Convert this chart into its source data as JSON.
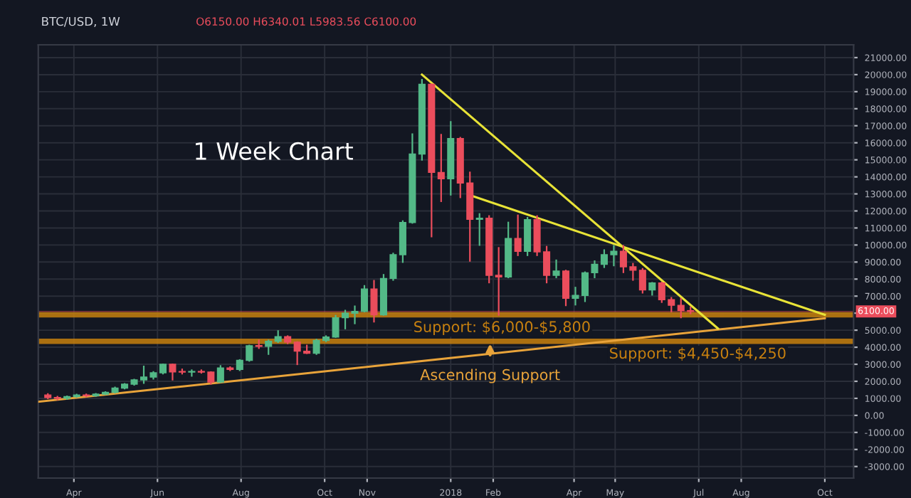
{
  "chart_data": {
    "type": "candlestick",
    "title": "BTC/USD, 1W",
    "annotations": [
      "O6150.00 H6340.01 L5983.56 C6100.00",
      "1 Week Chart",
      "Ascending Support"
    ],
    "x": [
      "2017-03-13",
      "2017-03-20",
      "2017-03-27",
      "2017-04-03",
      "2017-04-10",
      "2017-04-17",
      "2017-04-24",
      "2017-05-01",
      "2017-05-08",
      "2017-05-15",
      "2017-05-22",
      "2017-05-29",
      "2017-06-05",
      "2017-06-12",
      "2017-06-19",
      "2017-06-26",
      "2017-07-03",
      "2017-07-10",
      "2017-07-17",
      "2017-07-24",
      "2017-07-31",
      "2017-08-07",
      "2017-08-14",
      "2017-08-21",
      "2017-08-28",
      "2017-09-04",
      "2017-09-11",
      "2017-09-18",
      "2017-09-25",
      "2017-10-02",
      "2017-10-09",
      "2017-10-16",
      "2017-10-23",
      "2017-10-30",
      "2017-11-06",
      "2017-11-13",
      "2017-11-20",
      "2017-11-27",
      "2017-12-04",
      "2017-12-11",
      "2017-12-18",
      "2017-12-25",
      "2018-01-01",
      "2018-01-08",
      "2018-01-15",
      "2018-01-22",
      "2018-01-29",
      "2018-02-05",
      "2018-02-12",
      "2018-02-19",
      "2018-02-26",
      "2018-03-05",
      "2018-03-12",
      "2018-03-19",
      "2018-03-26",
      "2018-04-02",
      "2018-04-09",
      "2018-04-16",
      "2018-04-23",
      "2018-04-30",
      "2018-05-07",
      "2018-05-14",
      "2018-05-21",
      "2018-05-28",
      "2018-06-04",
      "2018-06-11",
      "2018-06-18",
      "2018-06-25"
    ],
    "ohlc": [
      [
        1200,
        1250,
        1000,
        1050
      ],
      [
        1050,
        1100,
        930,
        1000
      ],
      [
        1000,
        1120,
        960,
        1100
      ],
      [
        1100,
        1220,
        1080,
        1200
      ],
      [
        1200,
        1230,
        1120,
        1150
      ],
      [
        1150,
        1260,
        1140,
        1250
      ],
      [
        1250,
        1370,
        1240,
        1350
      ],
      [
        1350,
        1640,
        1340,
        1600
      ],
      [
        1600,
        1850,
        1580,
        1830
      ],
      [
        1830,
        2100,
        1800,
        2080
      ],
      [
        2080,
        2870,
        1900,
        2250
      ],
      [
        2250,
        2550,
        2150,
        2500
      ],
      [
        2500,
        3000,
        2450,
        3000
      ],
      [
        3000,
        3000,
        2100,
        2550
      ],
      [
        2580,
        2700,
        2450,
        2540
      ],
      [
        2540,
        2650,
        2320,
        2580
      ],
      [
        2580,
        2650,
        2500,
        2540
      ],
      [
        2540,
        2540,
        1850,
        1960
      ],
      [
        1960,
        2900,
        1950,
        2780
      ],
      [
        2780,
        2830,
        2650,
        2700
      ],
      [
        2700,
        3250,
        2650,
        3230
      ],
      [
        3230,
        4100,
        3200,
        4090
      ],
      [
        4100,
        4400,
        3950,
        4050
      ],
      [
        4050,
        4400,
        3600,
        4350
      ],
      [
        4350,
        4950,
        4300,
        4620
      ],
      [
        4620,
        4650,
        4230,
        4300
      ],
      [
        4300,
        4300,
        3000,
        3770
      ],
      [
        3770,
        4100,
        3650,
        3650
      ],
      [
        3650,
        4450,
        3600,
        4400
      ],
      [
        4400,
        4650,
        4350,
        4600
      ],
      [
        4600,
        5850,
        4600,
        5730
      ],
      [
        5730,
        6150,
        5100,
        6000
      ],
      [
        6000,
        6400,
        5400,
        6100
      ],
      [
        6100,
        7600,
        6100,
        7420
      ],
      [
        7420,
        7900,
        5500,
        5900
      ],
      [
        5900,
        8250,
        5900,
        8040
      ],
      [
        8040,
        9500,
        7950,
        9430
      ],
      [
        9430,
        11400,
        9000,
        11320
      ],
      [
        11320,
        16500,
        11300,
        15340
      ],
      [
        15340,
        19700,
        15000,
        19440
      ],
      [
        19440,
        19440,
        10500,
        14260
      ],
      [
        14260,
        16470,
        12570,
        13890
      ],
      [
        13890,
        17230,
        12950,
        16250
      ],
      [
        16250,
        16300,
        12800,
        13640
      ],
      [
        13640,
        14260,
        9070,
        11510
      ],
      [
        11510,
        11820,
        10000,
        11570
      ],
      [
        11570,
        11700,
        7800,
        8220
      ],
      [
        8220,
        9830,
        5900,
        8120
      ],
      [
        8120,
        11320,
        8100,
        10380
      ],
      [
        10380,
        11740,
        9400,
        9630
      ],
      [
        9630,
        11600,
        9400,
        11490
      ],
      [
        11490,
        11700,
        9400,
        9600
      ],
      [
        9600,
        9900,
        7800,
        8220
      ],
      [
        8220,
        9100,
        8100,
        8470
      ],
      [
        8470,
        8500,
        6460,
        6870
      ],
      [
        6870,
        7500,
        6500,
        7040
      ],
      [
        7040,
        8400,
        6700,
        8370
      ],
      [
        8370,
        9050,
        8100,
        8870
      ],
      [
        8870,
        9700,
        8700,
        9430
      ],
      [
        9430,
        9950,
        8800,
        9630
      ],
      [
        9630,
        9950,
        8400,
        8720
      ],
      [
        8720,
        8900,
        7950,
        8520
      ],
      [
        8520,
        8600,
        7200,
        7360
      ],
      [
        7360,
        7780,
        7080,
        7770
      ],
      [
        7770,
        7800,
        6650,
        6790
      ],
      [
        6790,
        6900,
        6100,
        6460
      ],
      [
        6460,
        6850,
        5750,
        6150
      ],
      [
        6150,
        6340.01,
        5983.56,
        6100
      ]
    ],
    "colors": [
      "#eb4d5c",
      "#eb4d5c",
      "#53b987",
      "#53b987",
      "#eb4d5c",
      "#53b987",
      "#53b987",
      "#53b987",
      "#53b987",
      "#53b987",
      "#53b987",
      "#53b987",
      "#53b987",
      "#eb4d5c",
      "#eb4d5c",
      "#53b987",
      "#eb4d5c",
      "#eb4d5c",
      "#53b987",
      "#eb4d5c",
      "#53b987",
      "#53b987",
      "#eb4d5c",
      "#53b987",
      "#53b987",
      "#eb4d5c",
      "#eb4d5c",
      "#eb4d5c",
      "#53b987",
      "#53b987",
      "#53b987",
      "#53b987",
      "#53b987",
      "#53b987",
      "#eb4d5c",
      "#53b987",
      "#53b987",
      "#53b987",
      "#53b987",
      "#53b987",
      "#eb4d5c",
      "#eb4d5c",
      "#53b987",
      "#eb4d5c",
      "#eb4d5c",
      "#53b987",
      "#eb4d5c",
      "#eb4d5c",
      "#53b987",
      "#eb4d5c",
      "#53b987",
      "#eb4d5c",
      "#eb4d5c",
      "#53b987",
      "#eb4d5c",
      "#53b987",
      "#53b987",
      "#53b987",
      "#53b987",
      "#53b987",
      "#eb4d5c",
      "#eb4d5c",
      "#eb4d5c",
      "#53b987",
      "#eb4d5c",
      "#eb4d5c",
      "#eb4d5c",
      "#eb4d5c"
    ],
    "series": [
      {
        "type": "line",
        "color": "#e8a33a",
        "x": [
          "2017-03-06",
          "2018-10-01"
        ],
        "values": [
          800,
          5700
        ]
      },
      {
        "type": "line",
        "color": "#e8e337",
        "x": [
          "2017-12-11",
          "2018-07-15"
        ],
        "values": [
          20000,
          5100
        ]
      },
      {
        "type": "line",
        "color": "#e8e337",
        "x": [
          "2018-01-16",
          "2018-10-01"
        ],
        "values": [
          12900,
          5900
        ]
      }
    ],
    "bands": [
      {
        "axis": "y",
        "from": 5800,
        "to": 6000,
        "label": "Support: $6,000-$5,800",
        "color": "#c7800f"
      },
      {
        "axis": "y",
        "from": 4250,
        "to": 4450,
        "label": "Support: $4,450-$4,250",
        "color": "#c7800f"
      }
    ],
    "ref_lines": [
      {
        "axis": "y",
        "value": 6100,
        "label": "6100.00",
        "color": "#eb4d5c"
      }
    ],
    "xlim": [
      "2017-03-06",
      "2018-10-22"
    ],
    "xticks": [
      {
        "value": "2017-04-01",
        "label": "Apr"
      },
      {
        "value": "2017-06-01",
        "label": "Jun"
      },
      {
        "value": "2017-08-01",
        "label": "Aug"
      },
      {
        "value": "2017-10-01",
        "label": "Oct"
      },
      {
        "value": "2017-11-01",
        "label": "Nov"
      },
      {
        "value": "2018-01-01",
        "label": "2018"
      },
      {
        "value": "2018-02-01",
        "label": "Feb"
      },
      {
        "value": "2018-04-01",
        "label": "Apr"
      },
      {
        "value": "2018-05-01",
        "label": "May"
      },
      {
        "value": "2018-07-01",
        "label": "Jul"
      },
      {
        "value": "2018-08-01",
        "label": "Aug"
      },
      {
        "value": "2018-10-01",
        "label": "Oct"
      }
    ],
    "ylim": [
      -3680,
      21750
    ],
    "yticks": [
      {
        "value": -3000,
        "label": "-3000.00"
      },
      {
        "value": -2000,
        "label": "-2000.00"
      },
      {
        "value": -1000,
        "label": "-1000.00"
      },
      {
        "value": 0,
        "label": "0.00"
      },
      {
        "value": 1000,
        "label": "1000.00"
      },
      {
        "value": 2000,
        "label": "2000.00"
      },
      {
        "value": 3000,
        "label": "3000.00"
      },
      {
        "value": 4000,
        "label": "4000.00"
      },
      {
        "value": 5000,
        "label": "5000.00"
      },
      {
        "value": 6000,
        "label": null
      },
      {
        "value": 7000,
        "label": "7000.00"
      },
      {
        "value": 8000,
        "label": "8000.00"
      },
      {
        "value": 9000,
        "label": "9000.00"
      },
      {
        "value": 10000,
        "label": "10000.00"
      },
      {
        "value": 11000,
        "label": "11000.00"
      },
      {
        "value": 12000,
        "label": "12000.00"
      },
      {
        "value": 13000,
        "label": "13000.00"
      },
      {
        "value": 14000,
        "label": "14000.00"
      },
      {
        "value": 15000,
        "label": "15000.00"
      },
      {
        "value": 16000,
        "label": "16000.00"
      },
      {
        "value": 17000,
        "label": "17000.00"
      },
      {
        "value": 18000,
        "label": "18000.00"
      },
      {
        "value": 19000,
        "label": "19000.00"
      },
      {
        "value": 20000,
        "label": "20000.00"
      },
      {
        "value": 21000,
        "label": "21000.00"
      }
    ],
    "grid": true
  }
}
